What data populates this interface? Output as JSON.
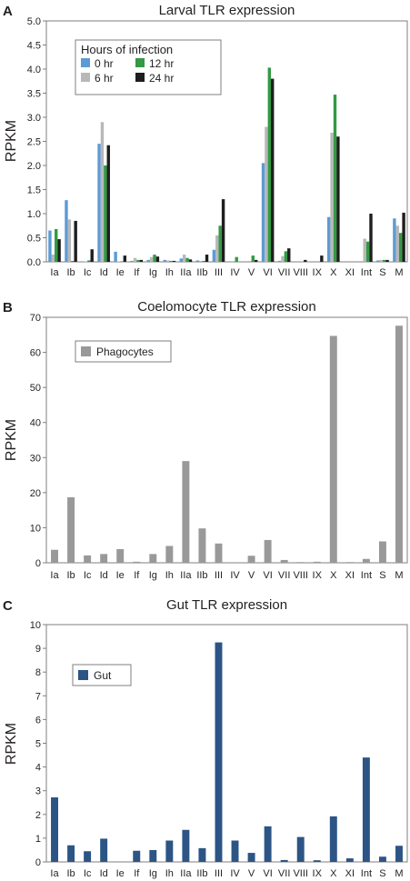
{
  "colors": {
    "h0": "#5b9bd5",
    "h6": "#b8b8b8",
    "h12": "#339944",
    "h24": "#1e1e1e",
    "phago": "#999999",
    "gut": "#2c5585",
    "axis": "#7f7f7f",
    "text": "#231f20"
  },
  "chart_data": [
    {
      "panel": "A",
      "type": "bar",
      "title": "Larval TLR expression",
      "ylabel": "RPKM",
      "xlabel": "",
      "ylim": [
        0,
        5.0
      ],
      "yticks": [
        "0.0",
        "0.5",
        "1.0",
        "1.5",
        "2.0",
        "2.5",
        "3.0",
        "3.5",
        "4.0",
        "4.5",
        "5.0"
      ],
      "grid": false,
      "legend": {
        "title": "Hours of infection",
        "placement": "top-left",
        "entries": [
          "0 hr",
          "6 hr",
          "12 hr",
          "24 hr"
        ]
      },
      "categories": [
        "Ia",
        "Ib",
        "Ic",
        "Id",
        "Ie",
        "If",
        "Ig",
        "Ih",
        "IIa",
        "IIb",
        "III",
        "IV",
        "V",
        "VI",
        "VII",
        "VIII",
        "IX",
        "X",
        "XI",
        "Int",
        "S",
        "M"
      ],
      "series": [
        {
          "name": "0 hr",
          "color_key": "h0",
          "values": [
            0.65,
            1.28,
            0.01,
            2.45,
            0.21,
            0.02,
            0.04,
            0.04,
            0.07,
            0.03,
            0.25,
            0.0,
            0.0,
            2.05,
            0.02,
            0.0,
            0.0,
            0.93,
            0.0,
            0.0,
            0.03,
            0.9
          ]
        },
        {
          "name": "6 hr",
          "color_key": "h6",
          "values": [
            0.15,
            0.88,
            0.01,
            2.9,
            0.01,
            0.08,
            0.1,
            0.03,
            0.15,
            0.02,
            0.55,
            0.0,
            0.02,
            2.8,
            0.12,
            0.0,
            0.0,
            2.68,
            0.0,
            0.48,
            0.04,
            0.75
          ]
        },
        {
          "name": "12 hr",
          "color_key": "h12",
          "values": [
            0.68,
            0.02,
            0.03,
            2.0,
            0.01,
            0.04,
            0.15,
            0.02,
            0.08,
            0.02,
            0.75,
            0.1,
            0.13,
            4.03,
            0.22,
            0.0,
            0.0,
            3.47,
            0.0,
            0.42,
            0.04,
            0.6
          ]
        },
        {
          "name": "24 hr",
          "color_key": "h24",
          "values": [
            0.47,
            0.85,
            0.26,
            2.42,
            0.13,
            0.04,
            0.11,
            0.02,
            0.05,
            0.15,
            1.3,
            0.0,
            0.04,
            3.8,
            0.28,
            0.04,
            0.13,
            2.6,
            0.0,
            1.0,
            0.04,
            1.02
          ]
        }
      ]
    },
    {
      "panel": "B",
      "type": "bar",
      "title": "Coelomocyte TLR expression",
      "ylabel": "RPKM",
      "xlabel": "",
      "ylim": [
        0,
        70
      ],
      "yticks": [
        "0",
        "10",
        "20",
        "30",
        "40",
        "50",
        "60",
        "70"
      ],
      "grid": false,
      "legend": {
        "title": "",
        "placement": "top-left",
        "entries": [
          "Phagocytes"
        ]
      },
      "categories": [
        "Ia",
        "Ib",
        "Ic",
        "Id",
        "Ie",
        "If",
        "Ig",
        "Ih",
        "IIa",
        "IIb",
        "III",
        "IV",
        "V",
        "VI",
        "VII",
        "VIII",
        "IX",
        "X",
        "XI",
        "Int",
        "S",
        "M"
      ],
      "series": [
        {
          "name": "Phagocytes",
          "color_key": "phago",
          "values": [
            3.7,
            18.7,
            2.1,
            2.5,
            3.9,
            0.3,
            2.5,
            4.8,
            29.0,
            9.8,
            5.5,
            0.0,
            2.0,
            6.5,
            0.8,
            0.2,
            0.3,
            64.7,
            0.2,
            1.1,
            6.1,
            67.6
          ]
        }
      ]
    },
    {
      "panel": "C",
      "type": "bar",
      "title": "Gut TLR expression",
      "ylabel": "RPKM",
      "xlabel": "",
      "ylim": [
        0,
        10
      ],
      "yticks": [
        "0",
        "1",
        "2",
        "3",
        "4",
        "5",
        "6",
        "7",
        "8",
        "9",
        "10"
      ],
      "grid": false,
      "legend": {
        "title": "",
        "placement": "top-left",
        "entries": [
          "Gut"
        ]
      },
      "categories": [
        "Ia",
        "Ib",
        "Ic",
        "Id",
        "Ie",
        "If",
        "Ig",
        "Ih",
        "IIa",
        "IIb",
        "III",
        "IV",
        "V",
        "VI",
        "VII",
        "VIII",
        "IX",
        "X",
        "XI",
        "Int",
        "S",
        "M"
      ],
      "series": [
        {
          "name": "Gut",
          "color_key": "gut",
          "values": [
            2.72,
            0.7,
            0.45,
            0.98,
            0.0,
            0.47,
            0.5,
            0.9,
            1.35,
            0.58,
            9.25,
            0.9,
            0.38,
            1.5,
            0.08,
            1.05,
            0.07,
            1.92,
            0.15,
            4.4,
            0.22,
            0.68
          ]
        }
      ]
    }
  ]
}
